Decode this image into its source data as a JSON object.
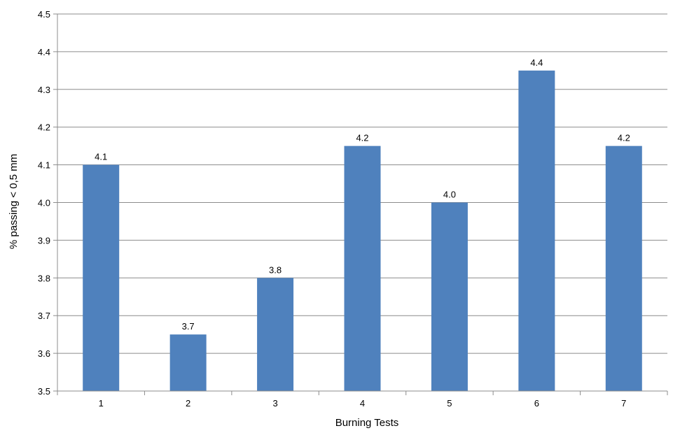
{
  "chart_data": {
    "type": "bar",
    "categories": [
      "1",
      "2",
      "3",
      "4",
      "5",
      "6",
      "7"
    ],
    "values": [
      4.1,
      3.65,
      3.8,
      4.15,
      4.0,
      4.35,
      4.15
    ],
    "data_labels": [
      "4.1",
      "3.7",
      "3.8",
      "4.2",
      "4.0",
      "4.4",
      "4.2"
    ],
    "title": "",
    "xlabel": "Burning Tests",
    "ylabel": "% passing < 0,5 mm",
    "ylim": [
      3.5,
      4.5
    ],
    "yticks": [
      "3.5",
      "3.6",
      "3.7",
      "3.8",
      "3.9",
      "4.0",
      "4.1",
      "4.2",
      "4.3",
      "4.4",
      "4.5"
    ],
    "grid": "horizontal",
    "legend": "none",
    "bar_color": "#4F81BD"
  }
}
